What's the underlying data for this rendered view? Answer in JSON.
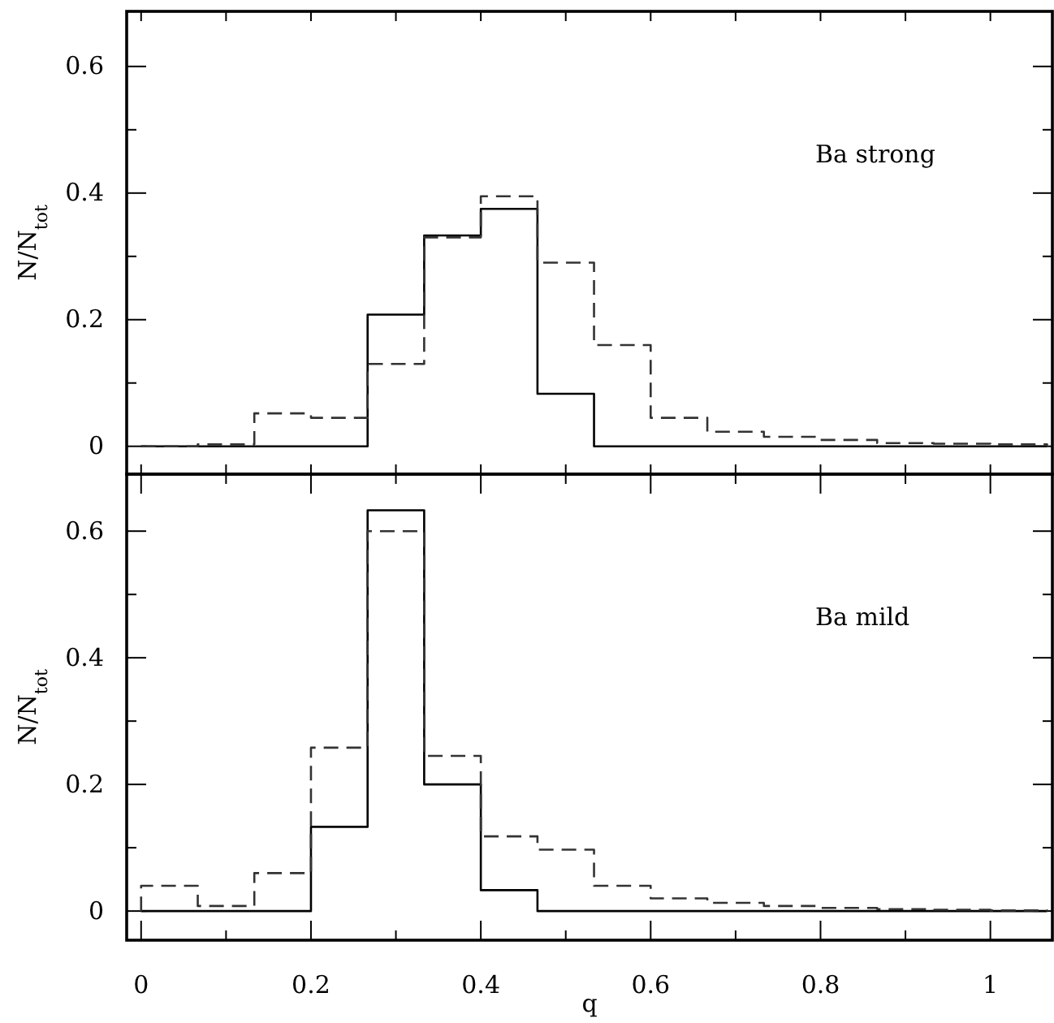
{
  "chart_data": [
    {
      "type": "histogram",
      "ylabel": "N/N$_{tot}$",
      "annotations": [
        "Ba strong"
      ],
      "tick_labels": "y",
      "bins": [
        0,
        0.0667,
        0.1333,
        0.2,
        0.2667,
        0.3333,
        0.4,
        0.4667,
        0.5333,
        0.6,
        0.6667,
        0.7333,
        0.8,
        0.8667,
        0.9333,
        1.0,
        1.0667
      ],
      "series": [
        {
          "color": "#000000",
          "line_style": "solid",
          "values": [
            0,
            0,
            0,
            0,
            0.208,
            0.333,
            0.375,
            0.083,
            0,
            0,
            0,
            0,
            0,
            0,
            0,
            0
          ]
        },
        {
          "color": "#333333",
          "line_style": "dashed",
          "values": [
            0,
            0.003,
            0.052,
            0.045,
            0.13,
            0.33,
            0.395,
            0.29,
            0.16,
            0.045,
            0.023,
            0.015,
            0.01,
            0.005,
            0.004,
            0.003
          ]
        }
      ],
      "xlim": [
        -0.017,
        1.073
      ],
      "xticks": [
        {
          "value": 0,
          "label": null
        },
        {
          "value": 0.1,
          "label": null
        },
        {
          "value": 0.2,
          "label": null
        },
        {
          "value": 0.3,
          "label": null
        },
        {
          "value": 0.4,
          "label": null
        },
        {
          "value": 0.5,
          "label": null
        },
        {
          "value": 0.6,
          "label": null
        },
        {
          "value": 0.7,
          "label": null
        },
        {
          "value": 0.8,
          "label": null
        },
        {
          "value": 0.9,
          "label": null
        },
        {
          "value": 1,
          "label": null
        }
      ],
      "ylim": [
        -0.044,
        0.687
      ],
      "yticks": [
        0,
        {
          "value": 0.1,
          "label": null
        },
        0.2,
        {
          "value": 0.3,
          "label": null
        },
        0.4,
        {
          "value": 0.5,
          "label": null
        },
        0.6
      ]
    },
    {
      "type": "histogram",
      "xlabel": "q",
      "ylabel": "N/N$_{tot}$",
      "annotations": [
        "Ba mild"
      ],
      "bins": [
        0,
        0.0667,
        0.1333,
        0.2,
        0.2667,
        0.3333,
        0.4,
        0.4667,
        0.5333,
        0.6,
        0.6667,
        0.7333,
        0.8,
        0.8667,
        0.9333,
        1.0,
        1.0667
      ],
      "series": [
        {
          "color": "#000000",
          "line_style": "solid",
          "values": [
            0,
            0,
            0,
            0.133,
            0.633,
            0.2,
            0.033,
            0,
            0,
            0,
            0,
            0,
            0,
            0,
            0,
            0
          ]
        },
        {
          "color": "#333333",
          "line_style": "dashed",
          "values": [
            0.04,
            0.008,
            0.06,
            0.258,
            0.6,
            0.245,
            0.118,
            0.097,
            0.04,
            0.02,
            0.013,
            0.008,
            0.005,
            0.003,
            0.002,
            0.001
          ]
        }
      ],
      "xlim": [
        -0.017,
        1.073
      ],
      "xticks": [
        0,
        {
          "value": 0.1,
          "label": null
        },
        0.2,
        {
          "value": 0.3,
          "label": null
        },
        0.4,
        {
          "value": 0.5,
          "label": null
        },
        0.6,
        {
          "value": 0.7,
          "label": null
        },
        0.8,
        {
          "value": 0.9,
          "label": null
        },
        1
      ],
      "ylim": [
        -0.046,
        0.69
      ],
      "yticks": [
        0,
        {
          "value": 0.1,
          "label": null
        },
        0.2,
        {
          "value": 0.3,
          "label": null
        },
        0.4,
        {
          "value": 0.5,
          "label": null
        },
        0.6
      ]
    }
  ]
}
